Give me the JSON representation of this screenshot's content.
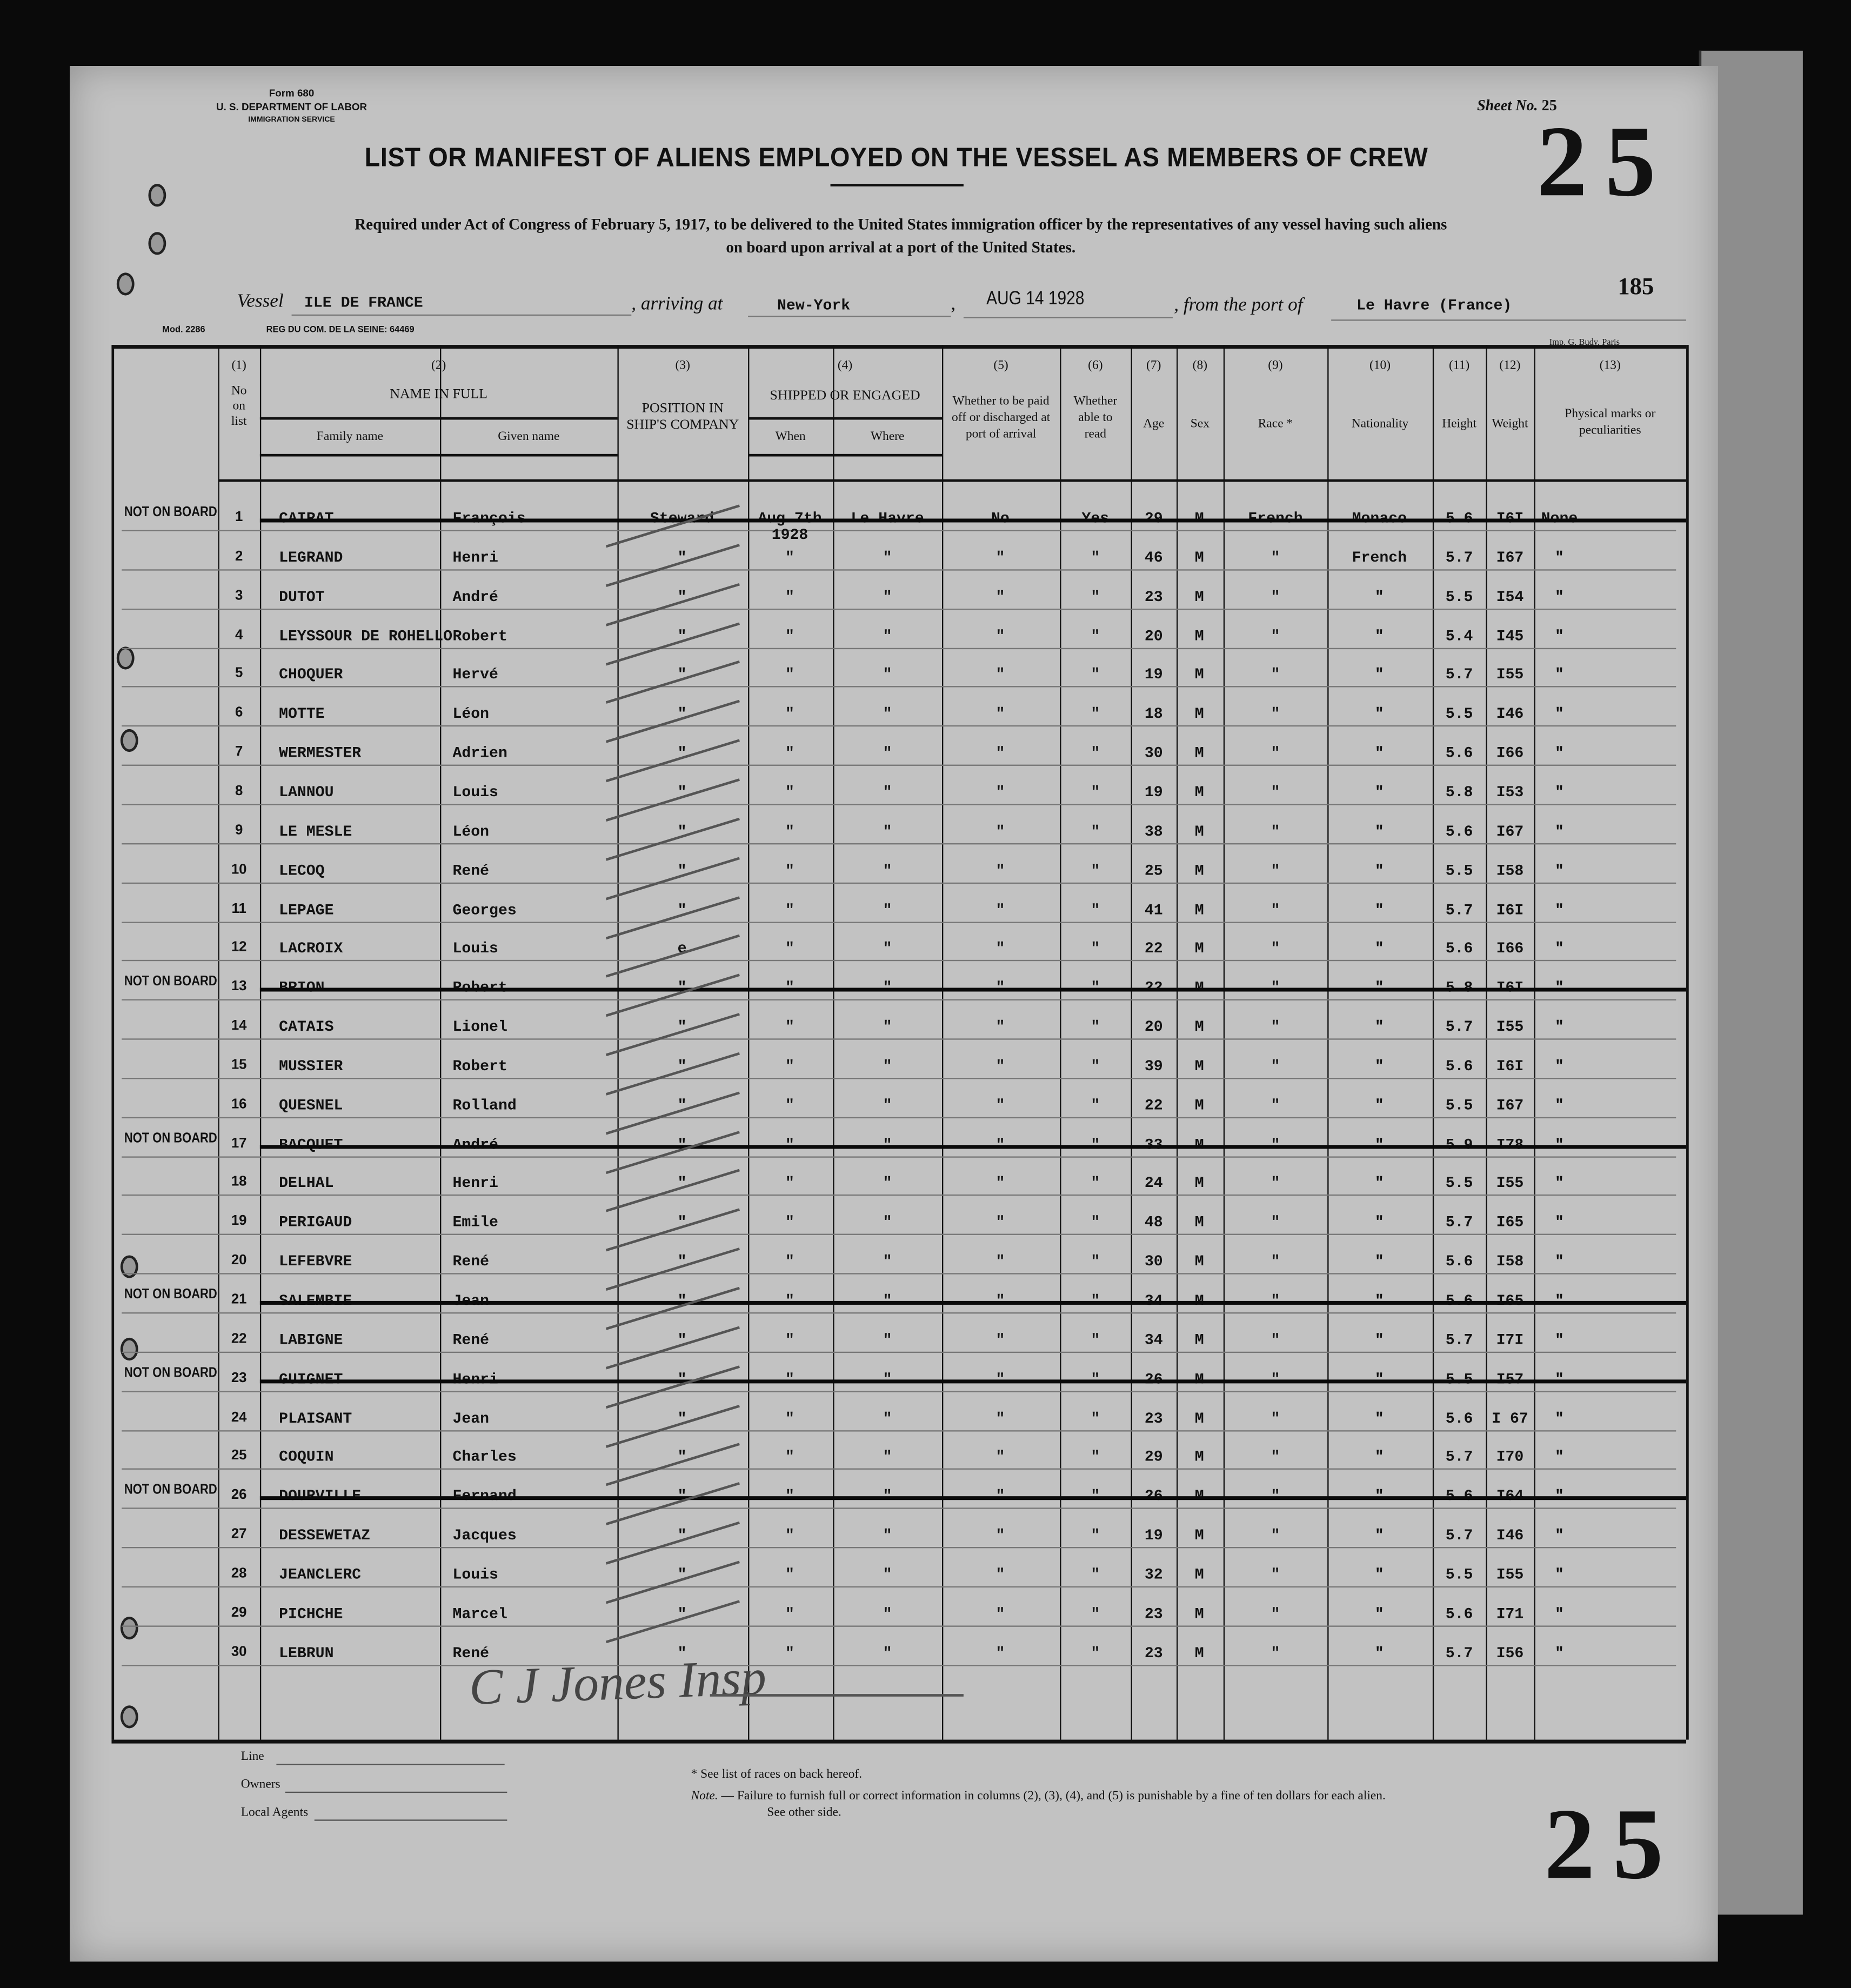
{
  "header": {
    "form_no": "Form 680",
    "department": "U. S. DEPARTMENT OF LABOR",
    "service": "IMMIGRATION SERVICE",
    "sheet_label": "Sheet No.",
    "sheet_no": "25",
    "title": "LIST OR MANIFEST OF ALIENS EMPLOYED ON THE VESSEL AS MEMBERS OF CREW",
    "big_number": "25",
    "required_line1": "Required under Act of Congress of February 5, 1917, to be delivered to the United States immigration officer by the representatives of any vessel having such aliens",
    "required_line2": "on board upon arrival at a port of the United States.",
    "stamp_number": "185",
    "vessel_label": "Vessel",
    "vessel": "ILE DE FRANCE",
    "arriving_label": ", arriving at",
    "arriving_at": "New-York",
    "date": "AUG 14 1928",
    "from_label": ", from the port of",
    "from_port": "Le Havre (France)",
    "mod": "Mod. 2286",
    "reg": "REG DU COM. DE LA SEINE: 64469",
    "printer": "Imp. G. Budy, Paris"
  },
  "columns": {
    "c1_num": "(1)",
    "c1": [
      "No",
      "on",
      "list"
    ],
    "c2_num": "(2)",
    "c2": "NAME IN FULL",
    "c2a": "Family name",
    "c2b": "Given name",
    "c3_num": "(3)",
    "c3": "POSITION IN SHIP'S COMPANY",
    "c4_num": "(4)",
    "c4": "SHIPPED OR ENGAGED",
    "c4a": "When",
    "c4b": "Where",
    "c5_num": "(5)",
    "c5": "Whether to be paid off or discharged at port of arrival",
    "c6_num": "(6)",
    "c6": "Whether able to read",
    "c7_num": "(7)",
    "c7": "Age",
    "c8_num": "(8)",
    "c8": "Sex",
    "c9_num": "(9)",
    "c9": "Race *",
    "c10_num": "(10)",
    "c10": "Nationality",
    "c11_num": "(11)",
    "c11": "Height",
    "c12_num": "(12)",
    "c12": "Weight",
    "c13_num": "(13)",
    "c13": "Physical marks or peculiarities"
  },
  "not_on_board_label": "NOT ON BOARD",
  "rows": [
    {
      "no": "1",
      "family": "CAIRAT",
      "given": "François",
      "position": "Steward",
      "when": "Aug.7th",
      "when2": "1928",
      "where": "Le Havre",
      "paid": "No",
      "read": "Yes",
      "age": "29",
      "sex": "M",
      "race": "French",
      "nationality": "Monaco",
      "height": "5.6",
      "weight": "I6I",
      "marks": "None",
      "struck": true
    },
    {
      "no": "2",
      "family": "LEGRAND",
      "given": "Henri",
      "position": "\"",
      "when": "\"",
      "where": "\"",
      "paid": "\"",
      "read": "\"",
      "age": "46",
      "sex": "M",
      "race": "\"",
      "nationality": "French",
      "height": "5.7",
      "weight": "I67",
      "marks": "\"",
      "struck": false
    },
    {
      "no": "3",
      "family": "DUTOT",
      "given": "André",
      "position": "\"",
      "when": "\"",
      "where": "\"",
      "paid": "\"",
      "read": "\"",
      "age": "23",
      "sex": "M",
      "race": "\"",
      "nationality": "\"",
      "height": "5.5",
      "weight": "I54",
      "marks": "\"",
      "struck": false
    },
    {
      "no": "4",
      "family": "LEYSSOUR DE ROHELLO",
      "given": "Robert",
      "position": "\"",
      "when": "\"",
      "where": "\"",
      "paid": "\"",
      "read": "\"",
      "age": "20",
      "sex": "M",
      "race": "\"",
      "nationality": "\"",
      "height": "5.4",
      "weight": "I45",
      "marks": "\"",
      "struck": false
    },
    {
      "no": "5",
      "family": "CHOQUER",
      "given": "Hervé",
      "position": "\"",
      "when": "\"",
      "where": "\"",
      "paid": "\"",
      "read": "\"",
      "age": "19",
      "sex": "M",
      "race": "\"",
      "nationality": "\"",
      "height": "5.7",
      "weight": "I55",
      "marks": "\"",
      "struck": false
    },
    {
      "no": "6",
      "family": "MOTTE",
      "given": "Léon",
      "position": "\"",
      "when": "\"",
      "where": "\"",
      "paid": "\"",
      "read": "\"",
      "age": "18",
      "sex": "M",
      "race": "\"",
      "nationality": "\"",
      "height": "5.5",
      "weight": "I46",
      "marks": "\"",
      "struck": false
    },
    {
      "no": "7",
      "family": "WERMESTER",
      "given": "Adrien",
      "position": "\"",
      "when": "\"",
      "where": "\"",
      "paid": "\"",
      "read": "\"",
      "age": "30",
      "sex": "M",
      "race": "\"",
      "nationality": "\"",
      "height": "5.6",
      "weight": "I66",
      "marks": "\"",
      "struck": false
    },
    {
      "no": "8",
      "family": "LANNOU",
      "given": "Louis",
      "position": "\"",
      "when": "\"",
      "where": "\"",
      "paid": "\"",
      "read": "\"",
      "age": "19",
      "sex": "M",
      "race": "\"",
      "nationality": "\"",
      "height": "5.8",
      "weight": "I53",
      "marks": "\"",
      "struck": false
    },
    {
      "no": "9",
      "family": "LE MESLE",
      "given": "Léon",
      "position": "\"",
      "when": "\"",
      "where": "\"",
      "paid": "\"",
      "read": "\"",
      "age": "38",
      "sex": "M",
      "race": "\"",
      "nationality": "\"",
      "height": "5.6",
      "weight": "I67",
      "marks": "\"",
      "struck": false
    },
    {
      "no": "10",
      "family": "LECOQ",
      "given": "René",
      "position": "\"",
      "when": "\"",
      "where": "\"",
      "paid": "\"",
      "read": "\"",
      "age": "25",
      "sex": "M",
      "race": "\"",
      "nationality": "\"",
      "height": "5.5",
      "weight": "I58",
      "marks": "\"",
      "struck": false
    },
    {
      "no": "11",
      "family": "LEPAGE",
      "given": "Georges",
      "position": "\"",
      "when": "\"",
      "where": "\"",
      "paid": "\"",
      "read": "\"",
      "age": "41",
      "sex": "M",
      "race": "\"",
      "nationality": "\"",
      "height": "5.7",
      "weight": "I6I",
      "marks": "\"",
      "struck": false
    },
    {
      "no": "12",
      "family": "LACROIX",
      "given": "Louis",
      "position": "e",
      "when": "\"",
      "where": "\"",
      "paid": "\"",
      "read": "\"",
      "age": "22",
      "sex": "M",
      "race": "\"",
      "nationality": "\"",
      "height": "5.6",
      "weight": "I66",
      "marks": "\"",
      "struck": false
    },
    {
      "no": "13",
      "family": "BRION",
      "given": "Robert",
      "position": "\"",
      "when": "\"",
      "where": "\"",
      "paid": "\"",
      "read": "\"",
      "age": "22",
      "sex": "M",
      "race": "\"",
      "nationality": "\"",
      "height": "5.8",
      "weight": "I6I",
      "marks": "\"",
      "struck": true
    },
    {
      "no": "14",
      "family": "CATAIS",
      "given": "Lionel",
      "position": "\"",
      "when": "\"",
      "where": "\"",
      "paid": "\"",
      "read": "\"",
      "age": "20",
      "sex": "M",
      "race": "\"",
      "nationality": "\"",
      "height": "5.7",
      "weight": "I55",
      "marks": "\"",
      "struck": false
    },
    {
      "no": "15",
      "family": "MUSSIER",
      "given": "Robert",
      "position": "\"",
      "when": "\"",
      "where": "\"",
      "paid": "\"",
      "read": "\"",
      "age": "39",
      "sex": "M",
      "race": "\"",
      "nationality": "\"",
      "height": "5.6",
      "weight": "I6I",
      "marks": "\"",
      "struck": false
    },
    {
      "no": "16",
      "family": "QUESNEL",
      "given": "Rolland",
      "position": "\"",
      "when": "\"",
      "where": "\"",
      "paid": "\"",
      "read": "\"",
      "age": "22",
      "sex": "M",
      "race": "\"",
      "nationality": "\"",
      "height": "5.5",
      "weight": "I67",
      "marks": "\"",
      "struck": false
    },
    {
      "no": "17",
      "family": "BACQUET",
      "given": "André",
      "position": "\"",
      "when": "\"",
      "where": "\"",
      "paid": "\"",
      "read": "\"",
      "age": "33",
      "sex": "M",
      "race": "\"",
      "nationality": "\"",
      "height": "5.9",
      "weight": "I78",
      "marks": "\"",
      "struck": true
    },
    {
      "no": "18",
      "family": "DELHAL",
      "given": "Henri",
      "position": "\"",
      "when": "\"",
      "where": "\"",
      "paid": "\"",
      "read": "\"",
      "age": "24",
      "sex": "M",
      "race": "\"",
      "nationality": "\"",
      "height": "5.5",
      "weight": "I55",
      "marks": "\"",
      "struck": false
    },
    {
      "no": "19",
      "family": "PERIGAUD",
      "given": "Emile",
      "position": "\"",
      "when": "\"",
      "where": "\"",
      "paid": "\"",
      "read": "\"",
      "age": "48",
      "sex": "M",
      "race": "\"",
      "nationality": "\"",
      "height": "5.7",
      "weight": "I65",
      "marks": "\"",
      "struck": false
    },
    {
      "no": "20",
      "family": "LEFEBVRE",
      "given": "René",
      "position": "\"",
      "when": "\"",
      "where": "\"",
      "paid": "\"",
      "read": "\"",
      "age": "30",
      "sex": "M",
      "race": "\"",
      "nationality": "\"",
      "height": "5.6",
      "weight": "I58",
      "marks": "\"",
      "struck": false
    },
    {
      "no": "21",
      "family": "SALEMBIE",
      "given": "Jean",
      "position": "\"",
      "when": "\"",
      "where": "\"",
      "paid": "\"",
      "read": "\"",
      "age": "34",
      "sex": "M",
      "race": "\"",
      "nationality": "\"",
      "height": "5.6",
      "weight": "I65",
      "marks": "\"",
      "struck": true
    },
    {
      "no": "22",
      "family": "LABIGNE",
      "given": "René",
      "position": "\"",
      "when": "\"",
      "where": "\"",
      "paid": "\"",
      "read": "\"",
      "age": "34",
      "sex": "M",
      "race": "\"",
      "nationality": "\"",
      "height": "5.7",
      "weight": "I7I",
      "marks": "\"",
      "struck": false
    },
    {
      "no": "23",
      "family": "GUIGNET",
      "given": "Henri",
      "position": "\"",
      "when": "\"",
      "where": "\"",
      "paid": "\"",
      "read": "\"",
      "age": "26",
      "sex": "M",
      "race": "\"",
      "nationality": "\"",
      "height": "5.5",
      "weight": "I57",
      "marks": "\"",
      "struck": true
    },
    {
      "no": "24",
      "family": "PLAISANT",
      "given": "Jean",
      "position": "\"",
      "when": "\"",
      "where": "\"",
      "paid": "\"",
      "read": "\"",
      "age": "23",
      "sex": "M",
      "race": "\"",
      "nationality": "\"",
      "height": "5.6",
      "weight": "I 67",
      "marks": "\"",
      "struck": false
    },
    {
      "no": "25",
      "family": "COQUIN",
      "given": "Charles",
      "position": "\"",
      "when": "\"",
      "where": "\"",
      "paid": "\"",
      "read": "\"",
      "age": "29",
      "sex": "M",
      "race": "\"",
      "nationality": "\"",
      "height": "5.7",
      "weight": "I70",
      "marks": "\"",
      "struck": false
    },
    {
      "no": "26",
      "family": "DOURVILLE",
      "given": "Fernand",
      "position": "\"",
      "when": "\"",
      "where": "\"",
      "paid": "\"",
      "read": "\"",
      "age": "26",
      "sex": "M",
      "race": "\"",
      "nationality": "\"",
      "height": "5.6",
      "weight": "I64",
      "marks": "\"",
      "struck": true
    },
    {
      "no": "27",
      "family": "DESSEWETAZ",
      "given": "Jacques",
      "position": "\"",
      "when": "\"",
      "where": "\"",
      "paid": "\"",
      "read": "\"",
      "age": "19",
      "sex": "M",
      "race": "\"",
      "nationality": "\"",
      "height": "5.7",
      "weight": "I46",
      "marks": "\"",
      "struck": false
    },
    {
      "no": "28",
      "family": "JEANCLERC",
      "given": "Louis",
      "position": "\"",
      "when": "\"",
      "where": "\"",
      "paid": "\"",
      "read": "\"",
      "age": "32",
      "sex": "M",
      "race": "\"",
      "nationality": "\"",
      "height": "5.5",
      "weight": "I55",
      "marks": "\"",
      "struck": false
    },
    {
      "no": "29",
      "family": "PICHCHE",
      "given": "Marcel",
      "position": "\"",
      "when": "\"",
      "where": "\"",
      "paid": "\"",
      "read": "\"",
      "age": "23",
      "sex": "M",
      "race": "\"",
      "nationality": "\"",
      "height": "5.6",
      "weight": "I71",
      "marks": "\"",
      "struck": false
    },
    {
      "no": "30",
      "family": "LEBRUN",
      "given": "René",
      "position": "\"",
      "when": "\"",
      "where": "\"",
      "paid": "\"",
      "read": "\"",
      "age": "23",
      "sex": "M",
      "race": "\"",
      "nationality": "\"",
      "height": "5.7",
      "weight": "I56",
      "marks": "\"",
      "struck": false
    }
  ],
  "signature": "C J Jones Insp",
  "footer": {
    "line_label": "Line",
    "owners_label": "Owners",
    "agents_label": "Local Agents",
    "race_note": "* See list of races on back hereof.",
    "note_label": "Note.",
    "note": "— Failure to furnish full or correct information in columns (2), (3), (4), and (5) is punishable by a fine of ten dollars for each alien.",
    "see_other": "See other side.",
    "big_number": "25"
  }
}
